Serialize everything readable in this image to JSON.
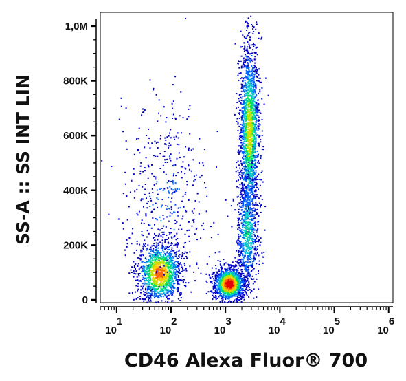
{
  "chart_data": {
    "type": "scatter",
    "subtype": "flow-cytometry-density-dot-plot",
    "title": "",
    "xlabel": "CD46 Alexa Fluor® 700",
    "ylabel": "SS-A :: SS INT LIN",
    "x_scale": "log",
    "xlim": [
      5,
      1200000
    ],
    "x_ticks": [
      {
        "value": 10,
        "base": "10",
        "exp": "1"
      },
      {
        "value": 100,
        "base": "10",
        "exp": "2"
      },
      {
        "value": 1000,
        "base": "10",
        "exp": "3"
      },
      {
        "value": 10000,
        "base": "10",
        "exp": "4"
      },
      {
        "value": 100000,
        "base": "10",
        "exp": "5"
      },
      {
        "value": 1000000,
        "base": "10",
        "exp": "6"
      }
    ],
    "y_scale": "linear",
    "ylim": [
      -10000,
      1050000
    ],
    "y_ticks": [
      {
        "value": 0,
        "label": "0"
      },
      {
        "value": 200000,
        "label": "200K"
      },
      {
        "value": 400000,
        "label": "400K"
      },
      {
        "value": 600000,
        "label": "600K"
      },
      {
        "value": 800000,
        "label": "800K"
      },
      {
        "value": 1000000,
        "label": "1,0M"
      }
    ],
    "grid": false,
    "legend": "none",
    "colormap": [
      "#0000c8",
      "#0064ff",
      "#00c8c8",
      "#00dc64",
      "#b4e600",
      "#ffc800",
      "#ff6400",
      "#e60000"
    ],
    "populations": [
      {
        "x_center": 60,
        "y_center": 100000,
        "x_spread_decades": 0.2,
        "y_spread": 55000,
        "points": 1300,
        "peak_density": 0.8
      },
      {
        "x_center": 1150,
        "y_center": 60000,
        "x_spread_decades": 0.14,
        "y_spread": 30000,
        "points": 1400,
        "peak_density": 1.0
      },
      {
        "x_center": 2700,
        "y_center": 620000,
        "x_spread_decades": 0.09,
        "y_spread": 160000,
        "points": 1700,
        "peak_density": 0.6
      },
      {
        "x_center": 2500,
        "y_center": 250000,
        "x_spread_decades": 0.1,
        "y_spread": 110000,
        "points": 700,
        "peak_density": 0.35
      },
      {
        "x_center": 80,
        "y_center": 380000,
        "x_spread_decades": 0.4,
        "y_spread": 170000,
        "points": 450,
        "peak_density": 0.1
      }
    ]
  }
}
